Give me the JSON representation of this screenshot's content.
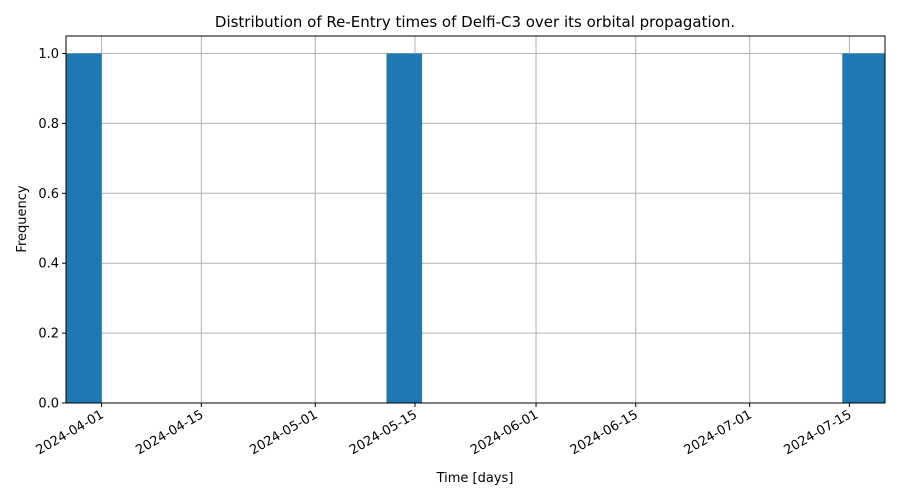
{
  "chart_data": {
    "type": "bar",
    "title": "Distribution of Re-Entry times of Delfi-C3 over its orbital propagation.",
    "xlabel": "Time [days]",
    "ylabel": "Frequency",
    "x_axis_type": "date",
    "xlim": [
      "2024-03-27",
      "2024-07-20"
    ],
    "ylim": [
      0,
      1.05
    ],
    "x_ticks": [
      "2024-04-01",
      "2024-04-15",
      "2024-05-01",
      "2024-05-15",
      "2024-06-01",
      "2024-06-15",
      "2024-07-01",
      "2024-07-15"
    ],
    "y_ticks": [
      "0.0",
      "0.2",
      "0.4",
      "0.6",
      "0.8",
      "1.0"
    ],
    "bars": [
      {
        "start": "2024-03-27",
        "end": "2024-04-01",
        "value": 1
      },
      {
        "start": "2024-05-11",
        "end": "2024-05-16",
        "value": 1
      },
      {
        "start": "2024-07-14",
        "end": "2024-07-20",
        "value": 1
      }
    ],
    "bar_color": "#1f77b4",
    "grid": true,
    "legend": "none"
  }
}
